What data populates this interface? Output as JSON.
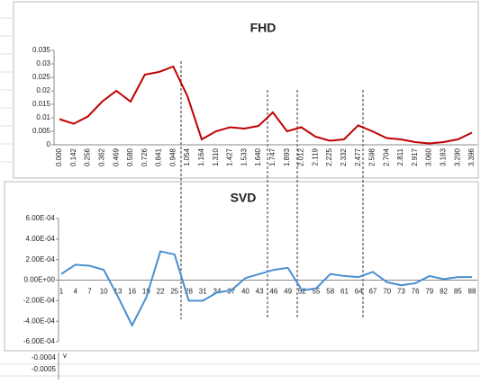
{
  "chart_data": [
    {
      "type": "line",
      "title": "FHD",
      "categories": [
        "0.000",
        "0.142",
        "0.256",
        "0.362",
        "0.469",
        "0.580",
        "0.726",
        "0.841",
        "0.948",
        "1.054",
        "1.164",
        "1.310",
        "1.427",
        "1.533",
        "1.640",
        "1.747",
        "1.893",
        "2.012",
        "2.119",
        "2.225",
        "2.332",
        "2.477",
        "2.598",
        "2.704",
        "2.811",
        "2.917",
        "3.060",
        "3.183",
        "3.290",
        "3.396"
      ],
      "values": [
        0.0095,
        0.0078,
        0.0105,
        0.016,
        0.02,
        0.016,
        0.026,
        0.027,
        0.029,
        0.018,
        0.002,
        0.005,
        0.0065,
        0.006,
        0.007,
        0.012,
        0.005,
        0.0065,
        0.003,
        0.0015,
        0.002,
        0.0072,
        0.005,
        0.0025,
        0.002,
        0.001,
        0.0005,
        0.001,
        0.002,
        0.0045
      ],
      "color": "#c00000",
      "ylim": [
        0,
        0.035
      ],
      "yticks": [
        0,
        0.005,
        0.01,
        0.015,
        0.02,
        0.025,
        0.03,
        0.035
      ]
    },
    {
      "type": "line",
      "title": "SVD",
      "categories": [
        "1",
        "4",
        "7",
        "10",
        "13",
        "16",
        "19",
        "22",
        "25",
        "28",
        "31",
        "34",
        "37",
        "40",
        "43",
        "46",
        "49",
        "52",
        "55",
        "58",
        "61",
        "64",
        "67",
        "70",
        "73",
        "76",
        "79",
        "82",
        "85",
        "88"
      ],
      "values": [
        6e-05,
        0.00015,
        0.00014,
        0.0001,
        -0.00016,
        -0.00044,
        -0.00017,
        0.00028,
        0.00025,
        -0.0002,
        -0.0002,
        -0.00012,
        -0.0001,
        2e-05,
        6e-05,
        0.0001,
        0.00012,
        -0.0001,
        -8e-05,
        6e-05,
        4e-05,
        3e-05,
        8e-05,
        -2e-05,
        -5e-05,
        -3e-05,
        4e-05,
        1e-05,
        3e-05,
        3e-05
      ],
      "color": "#4a8fd0",
      "ylim": [
        -0.0006,
        0.0006
      ],
      "yticks": [
        {
          "value": -0.0006,
          "label": "-6.00E-04"
        },
        {
          "value": -0.0004,
          "label": "-4.00E-04"
        },
        {
          "value": -0.0002,
          "label": "-2.00E-04"
        },
        {
          "value": 0,
          "label": "0.00E+00"
        },
        {
          "value": 0.0002,
          "label": "2.00E-04"
        },
        {
          "value": 0.0004,
          "label": "4.00E-04"
        },
        {
          "value": 0.0006,
          "label": "6.00E-04"
        }
      ]
    }
  ],
  "partial_axis_labels": [
    "-0.0004",
    "-0.0005"
  ]
}
